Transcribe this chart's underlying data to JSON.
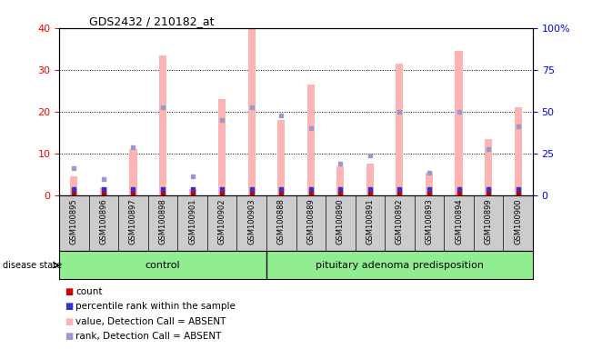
{
  "title": "GDS2432 / 210182_at",
  "samples": [
    "GSM100895",
    "GSM100896",
    "GSM100897",
    "GSM100898",
    "GSM100901",
    "GSM100902",
    "GSM100903",
    "GSM100888",
    "GSM100889",
    "GSM100890",
    "GSM100891",
    "GSM100892",
    "GSM100893",
    "GSM100894",
    "GSM100899",
    "GSM100900"
  ],
  "groups": [
    "control",
    "pituitary adenoma predisposition"
  ],
  "group_sizes": [
    7,
    9
  ],
  "pink_bars": [
    4.5,
    2.0,
    11.0,
    33.5,
    1.5,
    23.0,
    40.0,
    18.0,
    26.5,
    7.0,
    7.5,
    31.5,
    5.5,
    34.5,
    13.5,
    21.0
  ],
  "blue_squares": [
    6.5,
    4.0,
    11.5,
    21.0,
    4.5,
    18.0,
    21.0,
    19.0,
    16.0,
    7.5,
    9.5,
    20.0,
    5.5,
    20.0,
    11.0,
    16.5
  ],
  "pink_color": "#ffb3b3",
  "blue_color": "#9999cc",
  "red_color": "#cc0000",
  "dark_blue_color": "#3333cc",
  "ylim_left": [
    0,
    40
  ],
  "ylim_right": [
    0,
    100
  ],
  "yticks_left": [
    0,
    10,
    20,
    30,
    40
  ],
  "yticks_right": [
    0,
    25,
    50,
    75,
    100
  ],
  "ytick_labels_right": [
    "0",
    "25",
    "50",
    "75",
    "100%"
  ],
  "background_plot": "#ffffff",
  "background_xticklabel": "#cccccc",
  "background_group": "#90ee90",
  "disease_state_label": "disease state",
  "legend_items": [
    {
      "label": "count",
      "color": "#cc0000"
    },
    {
      "label": "percentile rank within the sample",
      "color": "#3333cc"
    },
    {
      "label": "value, Detection Call = ABSENT",
      "color": "#ffb3b3"
    },
    {
      "label": "rank, Detection Call = ABSENT",
      "color": "#9999cc"
    }
  ]
}
